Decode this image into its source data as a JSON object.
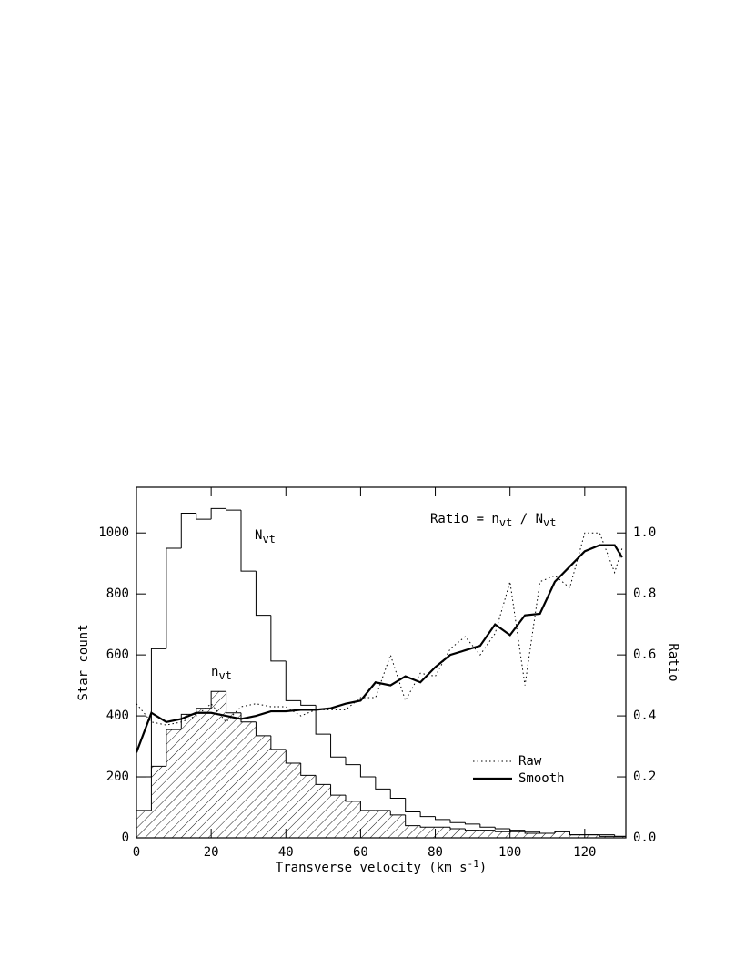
{
  "chart_data": {
    "type": "histogram",
    "x_label": [
      {
        "text": "Transverse velocity (km s"
      },
      {
        "text": "-1",
        "sup": true
      },
      {
        "text": ")"
      }
    ],
    "y_label": "Star count",
    "y2_label": "Ratio",
    "xlim": [
      0,
      131
    ],
    "ylim": [
      0,
      1150
    ],
    "y2lim": [
      0,
      1.15
    ],
    "xticks": [
      0,
      20,
      40,
      60,
      80,
      100,
      120
    ],
    "yticks": [
      0,
      200,
      400,
      600,
      800,
      1000
    ],
    "y2ticks": [
      {
        "value": 0,
        "label": "0.0"
      },
      0.2,
      0.4,
      0.6,
      0.8,
      {
        "value": 1,
        "label": "1.0"
      }
    ],
    "bins": [
      0,
      4,
      8,
      12,
      16,
      20,
      24,
      28,
      32,
      36,
      40,
      44,
      48,
      52,
      56,
      60,
      64,
      68,
      72,
      76,
      80,
      84,
      88,
      92,
      96,
      100,
      104,
      108,
      112,
      116,
      120,
      124,
      128,
      131
    ],
    "histograms": [
      {
        "name": [
          {
            "text": "N"
          },
          {
            "text": "vt",
            "sub": true
          }
        ],
        "hatched": false,
        "values": [
          200,
          620,
          950,
          1065,
          1045,
          1080,
          1075,
          875,
          730,
          580,
          450,
          435,
          340,
          265,
          240,
          200,
          160,
          130,
          85,
          70,
          60,
          50,
          45,
          35,
          30,
          25,
          20,
          15,
          20,
          10,
          10,
          10,
          5
        ]
      },
      {
        "name": [
          {
            "text": "n"
          },
          {
            "text": "vt",
            "sub": true
          }
        ],
        "hatched": true,
        "values": [
          90,
          235,
          355,
          405,
          425,
          480,
          410,
          380,
          335,
          290,
          245,
          205,
          175,
          140,
          120,
          90,
          90,
          75,
          40,
          35,
          35,
          30,
          25,
          25,
          20,
          20,
          15,
          15,
          20,
          10,
          10,
          5,
          5
        ]
      }
    ],
    "ratio_title": [
      {
        "text": "Ratio = n"
      },
      {
        "text": "vt",
        "sub": true
      },
      {
        "text": " / N"
      },
      {
        "text": "vt",
        "sub": true
      }
    ],
    "x": [
      0,
      4,
      8,
      12,
      16,
      20,
      24,
      28,
      32,
      36,
      40,
      44,
      48,
      52,
      56,
      60,
      64,
      68,
      72,
      76,
      80,
      84,
      88,
      92,
      96,
      100,
      104,
      108,
      112,
      116,
      120,
      124,
      128,
      130
    ],
    "series": [
      {
        "name": "Raw",
        "axis": "y2",
        "dash": "dotted",
        "color": "#000",
        "values": [
          0.44,
          0.38,
          0.37,
          0.38,
          0.4,
          0.44,
          0.38,
          0.43,
          0.44,
          0.43,
          0.43,
          0.4,
          0.42,
          0.42,
          0.42,
          0.46,
          0.46,
          0.6,
          0.45,
          0.54,
          0.53,
          0.62,
          0.66,
          0.6,
          0.67,
          0.84,
          0.5,
          0.84,
          0.86,
          0.82,
          1.0,
          1.0,
          0.87,
          0.95
        ]
      },
      {
        "name": "Smooth",
        "axis": "y2",
        "dash": "solid",
        "color": "#000",
        "values": [
          0.28,
          0.41,
          0.38,
          0.39,
          0.41,
          0.41,
          0.4,
          0.39,
          0.4,
          0.415,
          0.415,
          0.42,
          0.42,
          0.425,
          0.44,
          0.45,
          0.51,
          0.5,
          0.53,
          0.51,
          0.56,
          0.6,
          0.615,
          0.63,
          0.7,
          0.665,
          0.73,
          0.735,
          0.84,
          0.89,
          0.94,
          0.96,
          0.96,
          0.92
        ]
      }
    ],
    "legend": "lower right"
  }
}
